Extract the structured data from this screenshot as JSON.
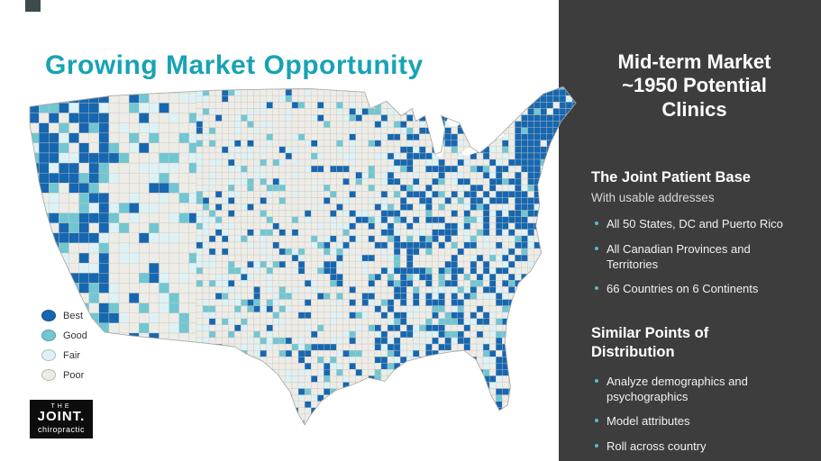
{
  "slide": {
    "title": "Growing Market Opportunity"
  },
  "colors": {
    "accent_teal": "#17a3b4",
    "panel_bg": "#3d3d3d",
    "bullet_teal": "#56bdc9"
  },
  "map": {
    "legend": [
      {
        "label": "Best",
        "color": "#1767b0"
      },
      {
        "label": "Good",
        "color": "#72c6d2"
      },
      {
        "label": "Fair",
        "color": "#def2f6"
      },
      {
        "label": "Poor",
        "color": "#edece7"
      }
    ]
  },
  "logo": {
    "line1": "THE",
    "line2": "JOINT.",
    "line3": "chiropractic"
  },
  "sidebar": {
    "heading_lines": [
      "Mid-term Market",
      "~1950 Potential",
      "Clinics"
    ],
    "sections": [
      {
        "title": "The Joint Patient Base",
        "subtitle": "With usable addresses",
        "bullets": [
          "All 50 States, DC and Puerto Rico",
          "All Canadian Provinces and Territories",
          "66 Countries on 6 Continents"
        ]
      },
      {
        "title": "Similar Points of Distribution",
        "subtitle": "",
        "bullets": [
          "Analyze demographics and psychographics",
          "Model attributes",
          "Roll across country"
        ]
      }
    ]
  }
}
